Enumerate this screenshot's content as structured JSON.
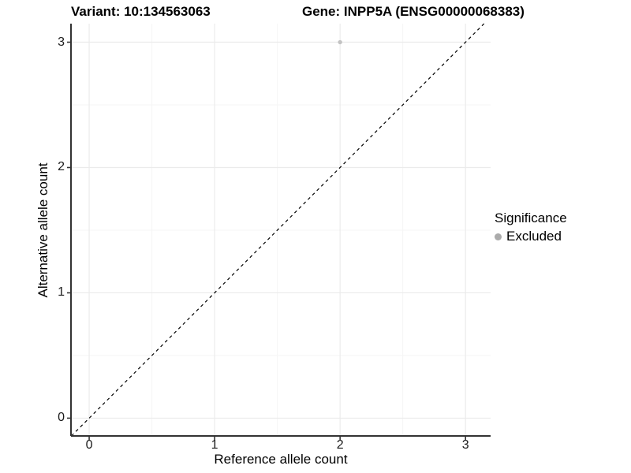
{
  "chart_data": {
    "type": "scatter",
    "title_left": "Variant: 10:134563063",
    "title_right": "Gene: INPP5A (ENSG00000068383)",
    "xlabel": "Reference allele count",
    "ylabel": "Alternative allele count",
    "xlim": [
      -0.145,
      3.2
    ],
    "ylim": [
      -0.142,
      3.148
    ],
    "x_ticks": [
      0,
      1,
      2,
      3
    ],
    "y_ticks": [
      0,
      1,
      2,
      3
    ],
    "x_minor_ticks": [
      0.5,
      1.5,
      2.5
    ],
    "y_minor_ticks": [
      0.5,
      1.5,
      2.5
    ],
    "grid": "on",
    "reference_line": {
      "type": "identity y=x",
      "style": "dashed",
      "color": "#000000"
    },
    "series": [
      {
        "name": "Excluded",
        "marker": "circle",
        "color": "#c3c3c3",
        "points": [
          [
            2,
            3
          ]
        ]
      }
    ],
    "legend": {
      "title": "Significance",
      "position": "right",
      "entries": [
        {
          "label": "Excluded",
          "color": "#ababab"
        }
      ]
    }
  },
  "colors": {
    "background": "#ffffff",
    "grid_major": "#ebebeb",
    "grid_minor": "#f5f5f5",
    "axis_line": "#333333",
    "tick_mark": "#333333",
    "text": "#000000",
    "point": "#c3c3c3"
  }
}
